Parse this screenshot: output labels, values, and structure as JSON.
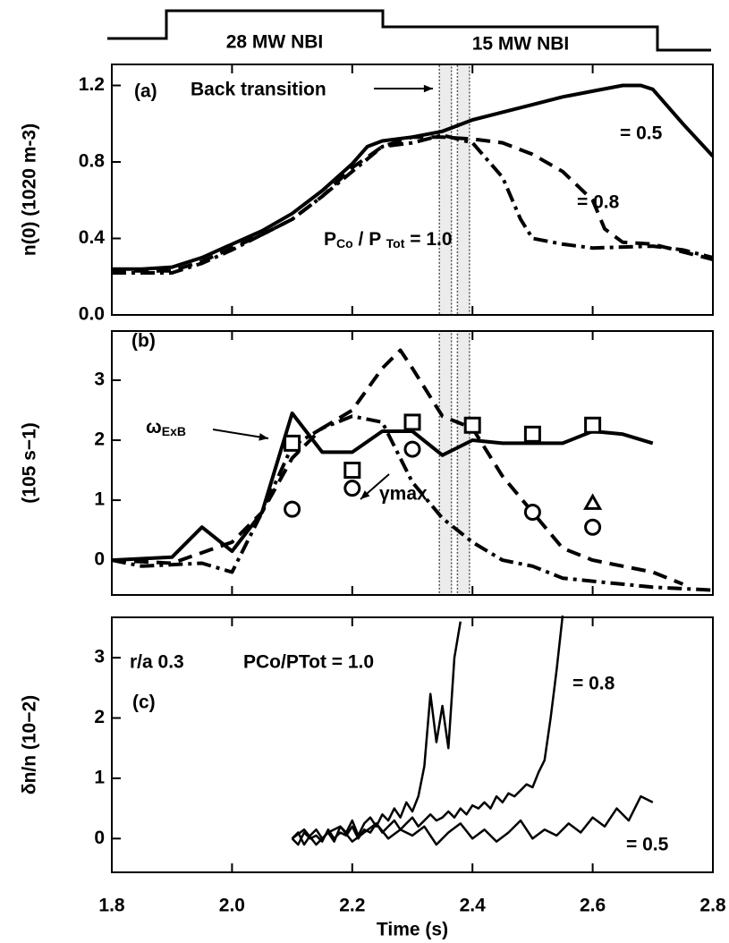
{
  "power_waveform": {
    "labels": [
      "28 MW NBI",
      "15 MW NBI"
    ]
  },
  "chart_data": [
    {
      "type": "line",
      "ylabel": "n(0) (1020 m-3)",
      "xlim": [
        1.8,
        2.8
      ],
      "ylim": [
        0,
        1.31
      ],
      "yticks": [
        {
          "value": 0,
          "label": "0.0"
        },
        0.4,
        0.8,
        1.2
      ],
      "annotations": [
        "(a)",
        "Back transition",
        [
          "P",
          "Co",
          " / P ",
          "Tot",
          " = 1.0"
        ]
      ],
      "highlight_spans": [
        [
          2.345,
          2.365
        ],
        [
          2.375,
          2.395
        ]
      ],
      "series": [
        {
          "name": "= 0.5",
          "color": "#000000",
          "dash": "solid",
          "x": [
            1.8,
            1.85,
            1.9,
            1.95,
            2.0,
            2.05,
            2.1,
            2.15,
            2.2,
            2.225,
            2.25,
            2.3,
            2.35,
            2.4,
            2.45,
            2.5,
            2.55,
            2.6,
            2.65,
            2.68,
            2.7,
            2.75,
            2.8
          ],
          "values": [
            0.24,
            0.24,
            0.25,
            0.3,
            0.37,
            0.44,
            0.53,
            0.65,
            0.79,
            0.88,
            0.91,
            0.93,
            0.96,
            1.02,
            1.06,
            1.1,
            1.14,
            1.17,
            1.2,
            1.2,
            1.18,
            1.0,
            0.83
          ]
        },
        {
          "name": "= 0.8",
          "color": "#000000",
          "dash": "dashed",
          "x": [
            1.8,
            1.9,
            1.95,
            2.0,
            2.05,
            2.1,
            2.15,
            2.2,
            2.25,
            2.3,
            2.35,
            2.4,
            2.45,
            2.5,
            2.55,
            2.6,
            2.62,
            2.65,
            2.7,
            2.75,
            2.8
          ],
          "values": [
            0.23,
            0.23,
            0.28,
            0.35,
            0.42,
            0.5,
            0.62,
            0.77,
            0.88,
            0.93,
            0.93,
            0.92,
            0.9,
            0.84,
            0.75,
            0.6,
            0.45,
            0.38,
            0.37,
            0.33,
            0.29
          ]
        },
        {
          "color": "#000000",
          "dash": "dashdot",
          "x": [
            1.8,
            1.9,
            1.95,
            2.0,
            2.05,
            2.1,
            2.15,
            2.2,
            2.25,
            2.3,
            2.35,
            2.4,
            2.45,
            2.48,
            2.5,
            2.55,
            2.6,
            2.7,
            2.75,
            2.8
          ],
          "values": [
            0.22,
            0.22,
            0.27,
            0.34,
            0.42,
            0.5,
            0.62,
            0.75,
            0.88,
            0.9,
            0.94,
            0.9,
            0.72,
            0.5,
            0.4,
            0.37,
            0.35,
            0.36,
            0.34,
            0.3
          ]
        }
      ]
    },
    {
      "type": "line",
      "ylabel": "(105 s−1)",
      "xlim": [
        1.8,
        2.8
      ],
      "ylim": [
        -0.58,
        3.82
      ],
      "yticks": [
        0,
        1,
        2,
        3
      ],
      "annotations": [
        "(b)",
        [
          "ω",
          "ExB"
        ],
        "γmax"
      ],
      "highlight_spans": [
        [
          2.345,
          2.365
        ],
        [
          2.375,
          2.395
        ]
      ],
      "series": [
        {
          "color": "#000000",
          "dash": "solid",
          "x": [
            1.8,
            1.9,
            1.95,
            2.0,
            2.05,
            2.1,
            2.15,
            2.2,
            2.25,
            2.3,
            2.35,
            2.4,
            2.45,
            2.5,
            2.55,
            2.6,
            2.65,
            2.7
          ],
          "values": [
            0,
            0.05,
            0.55,
            0.15,
            0.8,
            2.45,
            1.8,
            1.8,
            2.15,
            2.15,
            1.75,
            2.0,
            1.95,
            1.95,
            1.95,
            2.15,
            2.1,
            1.95
          ]
        },
        {
          "color": "#000000",
          "dash": "dashed",
          "x": [
            1.8,
            1.9,
            2.0,
            2.05,
            2.1,
            2.15,
            2.2,
            2.25,
            2.28,
            2.3,
            2.35,
            2.4,
            2.45,
            2.5,
            2.55,
            2.6,
            2.65,
            2.7,
            2.75
          ],
          "values": [
            0,
            -0.05,
            0.3,
            0.8,
            1.7,
            2.2,
            2.5,
            3.2,
            3.5,
            3.2,
            2.4,
            2.2,
            1.4,
            0.8,
            0.2,
            0,
            -0.1,
            -0.2,
            -0.4
          ]
        },
        {
          "color": "#000000",
          "dash": "dashdot",
          "x": [
            1.8,
            1.85,
            1.95,
            2.0,
            2.05,
            2.1,
            2.15,
            2.2,
            2.25,
            2.3,
            2.35,
            2.4,
            2.45,
            2.5,
            2.55,
            2.6,
            2.7,
            2.8
          ],
          "values": [
            0,
            -0.1,
            -0.05,
            -0.2,
            0.8,
            1.9,
            2.2,
            2.4,
            2.3,
            1.3,
            0.7,
            0.3,
            0,
            -0.1,
            -0.3,
            -0.35,
            -0.45,
            -0.5
          ]
        },
        {
          "color": "#000000",
          "marker": "square",
          "x": [
            2.1,
            2.2,
            2.3,
            2.4,
            2.5,
            2.6
          ],
          "values": [
            1.95,
            1.5,
            2.3,
            2.25,
            2.1,
            2.25
          ]
        },
        {
          "color": "#000000",
          "marker": "circle",
          "x": [
            2.1,
            2.2,
            2.3,
            2.5,
            2.6
          ],
          "values": [
            0.85,
            1.2,
            1.85,
            0.8,
            0.55
          ]
        },
        {
          "color": "#000000",
          "marker": "triangle",
          "x": [
            2.6
          ],
          "values": [
            0.95
          ]
        }
      ]
    },
    {
      "type": "line",
      "xlabel": "Time (s)",
      "ylabel": "δn/n (10−2)",
      "xlim": [
        1.8,
        2.8
      ],
      "ylim": [
        -0.56,
        3.67
      ],
      "xticks": [
        1.8,
        {
          "value": 2,
          "label": "2.0"
        },
        2.2,
        2.4,
        2.6,
        2.8
      ],
      "yticks": [
        0,
        1,
        2,
        3
      ],
      "annotations": [
        "r/a  0.3",
        "PCo/PTot = 1.0",
        "(c)"
      ],
      "series": [
        {
          "color": "#000000",
          "dash": "solid",
          "x": [
            2.1,
            2.11,
            2.12,
            2.13,
            2.14,
            2.15,
            2.16,
            2.17,
            2.18,
            2.19,
            2.2,
            2.21,
            2.22,
            2.23,
            2.24,
            2.25,
            2.26,
            2.27,
            2.28,
            2.29,
            2.3,
            2.31,
            2.32,
            2.33,
            2.34,
            2.35,
            2.36,
            2.37,
            2.38
          ],
          "values": [
            0,
            0.1,
            -0.1,
            0.05,
            0.15,
            0,
            0.1,
            -0.05,
            0.2,
            0.1,
            0.3,
            0.05,
            0.25,
            0.35,
            0.2,
            0.4,
            0.3,
            0.5,
            0.35,
            0.6,
            0.45,
            0.7,
            1.2,
            2.4,
            1.6,
            2.2,
            1.5,
            3.0,
            3.6
          ]
        },
        {
          "name": "= 0.8",
          "color": "#000000",
          "dash": "solid",
          "x": [
            2.1,
            2.11,
            2.12,
            2.13,
            2.14,
            2.15,
            2.16,
            2.17,
            2.18,
            2.19,
            2.2,
            2.21,
            2.22,
            2.23,
            2.24,
            2.25,
            2.26,
            2.27,
            2.28,
            2.29,
            2.3,
            2.31,
            2.32,
            2.33,
            2.34,
            2.35,
            2.36,
            2.37,
            2.38,
            2.39,
            2.4,
            2.41,
            2.42,
            2.43,
            2.44,
            2.45,
            2.46,
            2.47,
            2.48,
            2.49,
            2.5,
            2.51,
            2.52,
            2.53,
            2.54,
            2.55
          ],
          "values": [
            0,
            -0.1,
            0.1,
            0,
            0.05,
            -0.05,
            0.15,
            0,
            0.1,
            0.05,
            0.2,
            0,
            0.15,
            0.1,
            0.25,
            0.1,
            0.2,
            0.3,
            0.15,
            0.25,
            0.35,
            0.2,
            0.3,
            0.4,
            0.3,
            0.35,
            0.45,
            0.35,
            0.5,
            0.4,
            0.55,
            0.5,
            0.6,
            0.5,
            0.7,
            0.6,
            0.75,
            0.7,
            0.8,
            0.9,
            0.85,
            1.1,
            1.3,
            2.0,
            2.8,
            3.7
          ]
        },
        {
          "name": "= 0.5",
          "color": "#000000",
          "dash": "solid",
          "x": [
            2.1,
            2.12,
            2.14,
            2.16,
            2.18,
            2.2,
            2.22,
            2.24,
            2.26,
            2.28,
            2.3,
            2.32,
            2.34,
            2.36,
            2.38,
            2.4,
            2.42,
            2.44,
            2.46,
            2.48,
            2.5,
            2.52,
            2.54,
            2.56,
            2.58,
            2.6,
            2.62,
            2.64,
            2.66,
            2.68,
            2.7
          ],
          "values": [
            0,
            0.15,
            -0.1,
            0.1,
            0.2,
            -0.05,
            0.1,
            0.25,
            0,
            0.15,
            0.05,
            0.2,
            -0.1,
            0.1,
            0.25,
            0,
            0.15,
            -0.05,
            0.1,
            0.3,
            0,
            0.15,
            0.05,
            0.25,
            0.1,
            0.35,
            0.2,
            0.5,
            0.3,
            0.7,
            0.6
          ]
        }
      ]
    }
  ]
}
